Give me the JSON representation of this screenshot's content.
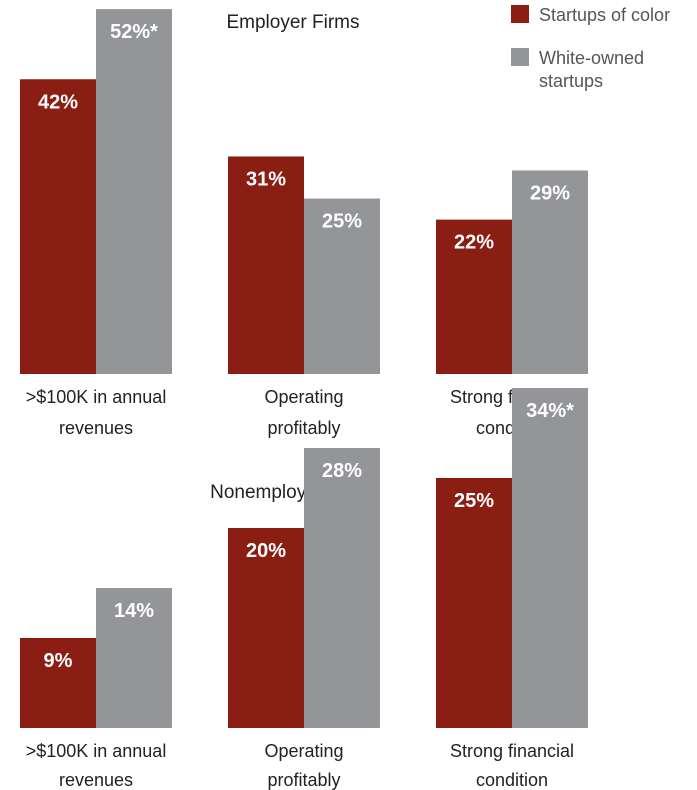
{
  "colors": {
    "startups_of_color": "#8B1E12",
    "white_owned": "#939598"
  },
  "legend": [
    {
      "lines": [
        "Startups of color"
      ],
      "color_key": "startups_of_color"
    },
    {
      "lines": [
        "White-owned",
        "startups"
      ],
      "color_key": "white_owned"
    }
  ],
  "chart_data": [
    {
      "type": "bar",
      "title": "Employer Firms",
      "categories": [
        ">$100K in annual revenues",
        "Operating profitably",
        "Strong financial condition"
      ],
      "category_lines": [
        [
          ">$100K in annual",
          "revenues"
        ],
        [
          "Operating",
          "profitably"
        ],
        [
          "Strong financial",
          "condition"
        ]
      ],
      "series": [
        {
          "name": "Startups of color",
          "values": [
            42,
            31,
            22
          ],
          "labels": [
            "42%",
            "31%",
            "22%"
          ],
          "color_key": "startups_of_color"
        },
        {
          "name": "White-owned startups",
          "values": [
            52,
            25,
            29
          ],
          "labels": [
            "52%*",
            "25%",
            "29%"
          ],
          "color_key": "white_owned"
        }
      ],
      "ylim": [
        0,
        57
      ],
      "grid": false,
      "legend_position": "top-right"
    },
    {
      "type": "bar",
      "title": "Nonemployer Firms",
      "categories": [
        ">$100K in annual revenues",
        "Operating profitably",
        "Strong financial condition"
      ],
      "category_lines": [
        [
          ">$100K in annual",
          "revenues"
        ],
        [
          "Operating",
          "profitably"
        ],
        [
          "Strong financial",
          "condition"
        ]
      ],
      "series": [
        {
          "name": "Startups of color",
          "values": [
            9,
            20,
            25
          ],
          "labels": [
            "9%",
            "20%",
            "25%"
          ],
          "color_key": "startups_of_color"
        },
        {
          "name": "White-owned startups",
          "values": [
            14,
            28,
            34
          ],
          "labels": [
            "14%",
            "28%",
            "34%*"
          ],
          "color_key": "white_owned"
        }
      ],
      "ylim": [
        0,
        40
      ],
      "grid": false
    }
  ]
}
